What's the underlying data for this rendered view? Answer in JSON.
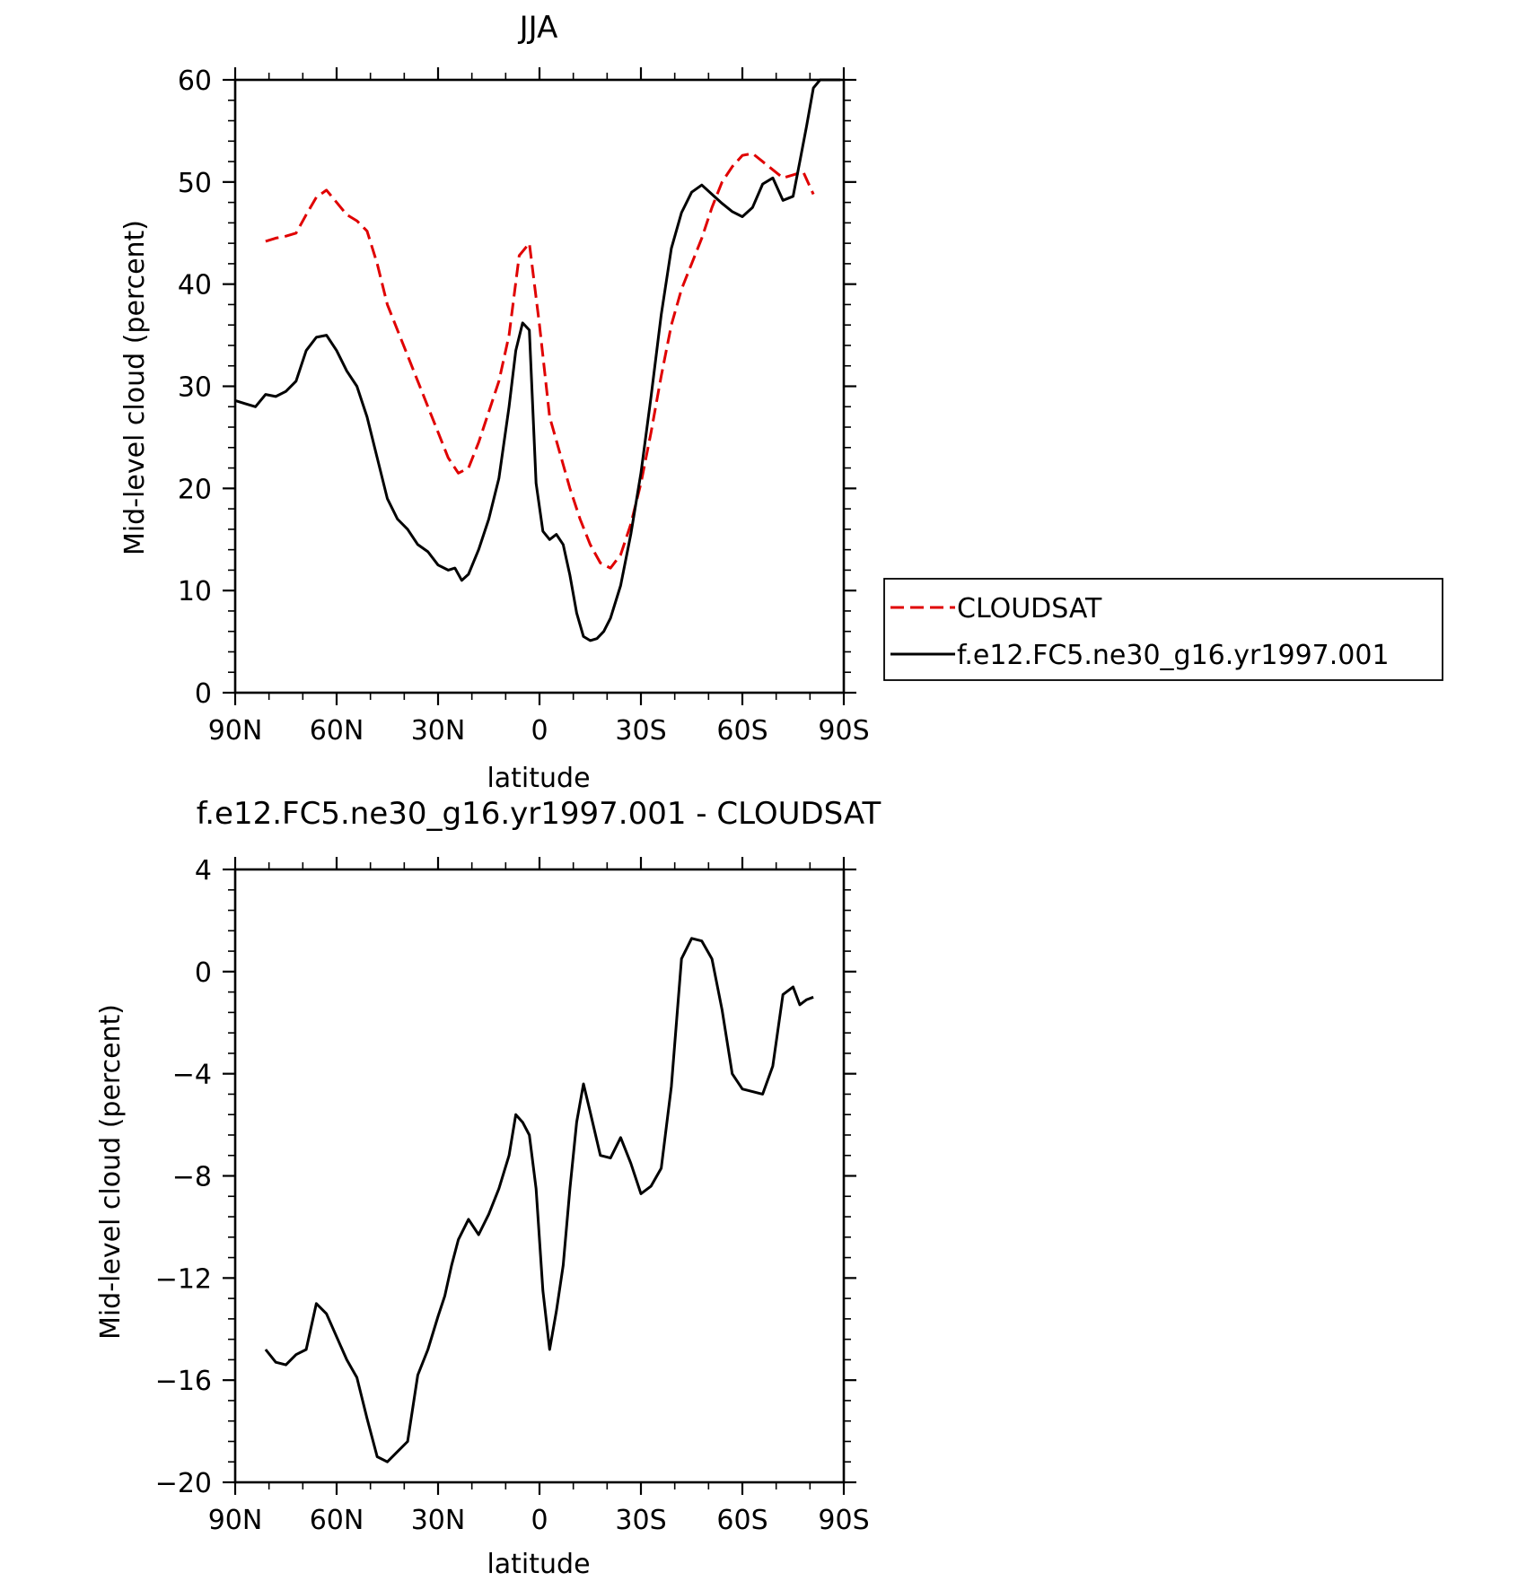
{
  "chart_data": [
    {
      "type": "line",
      "title": "JJA",
      "xlabel": "latitude",
      "ylabel": "Mid-level cloud (percent)",
      "xlim": [
        -90,
        90
      ],
      "ylim": [
        0,
        60
      ],
      "x_ticks": [
        -90,
        -60,
        -30,
        0,
        30,
        60,
        90
      ],
      "x_tick_labels": [
        "90N",
        "60N",
        "30N",
        "0",
        "30S",
        "60S",
        "90S"
      ],
      "y_ticks": [
        0,
        10,
        20,
        30,
        40,
        50,
        60
      ],
      "y_tick_labels": [
        "0",
        "10",
        "20",
        "30",
        "40",
        "50",
        "60"
      ],
      "grid": false,
      "legend_position": "right",
      "series": [
        {
          "name": "CLOUDSAT",
          "color": "#e00000",
          "dash": "dashed",
          "x": [
            -81,
            -78,
            -75,
            -72,
            -69,
            -66,
            -63,
            -60,
            -57,
            -54,
            -51,
            -48,
            -45,
            -42,
            -39,
            -36,
            -33,
            -30,
            -27,
            -24,
            -21,
            -18,
            -15,
            -12,
            -9,
            -6,
            -3,
            0,
            3,
            6,
            9,
            12,
            15,
            18,
            21,
            24,
            27,
            30,
            33,
            36,
            39,
            42,
            45,
            48,
            51,
            54,
            57,
            60,
            63,
            66,
            69,
            72,
            75,
            78,
            81
          ],
          "y": [
            44.2,
            44.5,
            44.7,
            45.0,
            46.8,
            48.5,
            49.2,
            48.0,
            46.8,
            46.2,
            45.2,
            42.0,
            38.0,
            35.5,
            33.0,
            30.5,
            28.0,
            25.5,
            23.0,
            21.5,
            22.0,
            24.5,
            27.5,
            30.5,
            35.0,
            42.8,
            44.0,
            36.0,
            27.0,
            23.5,
            20.0,
            17.0,
            14.5,
            12.7,
            12.2,
            13.5,
            16.5,
            20.5,
            25.5,
            31.0,
            36.0,
            39.5,
            42.0,
            44.5,
            47.5,
            50.0,
            51.5,
            52.6,
            52.8,
            52.0,
            51.2,
            50.4,
            50.7,
            51.0,
            48.8
          ]
        },
        {
          "name": "f.e12.FC5.ne30_g16.yr1997.001",
          "color": "#000000",
          "dash": "solid",
          "x": [
            -90,
            -87,
            -84,
            -81,
            -78,
            -75,
            -72,
            -69,
            -66,
            -63,
            -60,
            -57,
            -54,
            -51,
            -48,
            -45,
            -42,
            -39,
            -36,
            -33,
            -30,
            -27,
            -25,
            -23,
            -21,
            -18,
            -15,
            -12,
            -9,
            -7,
            -5,
            -3,
            -1,
            1,
            3,
            5,
            7,
            9,
            11,
            13,
            15,
            17,
            19,
            21,
            24,
            27,
            30,
            33,
            36,
            39,
            42,
            45,
            48,
            51,
            54,
            57,
            60,
            63,
            66,
            69,
            72,
            75,
            77,
            79,
            81,
            83,
            85,
            87,
            89
          ],
          "y": [
            28.6,
            28.3,
            28.0,
            29.2,
            29.0,
            29.5,
            30.5,
            33.5,
            34.8,
            35.0,
            33.5,
            31.5,
            30.0,
            27.0,
            23.0,
            19.0,
            17.0,
            16.0,
            14.5,
            13.8,
            12.5,
            12.0,
            12.2,
            11.0,
            11.6,
            14.0,
            17.0,
            21.0,
            28.0,
            33.5,
            36.2,
            35.5,
            20.5,
            15.8,
            15.0,
            15.5,
            14.5,
            11.5,
            7.8,
            5.5,
            5.1,
            5.3,
            6.0,
            7.3,
            10.5,
            15.5,
            21.5,
            29.0,
            37.0,
            43.5,
            47.0,
            49.0,
            49.7,
            48.8,
            47.9,
            47.1,
            46.6,
            47.5,
            49.8,
            50.4,
            48.2,
            48.6,
            52.0,
            55.5,
            59.2,
            60.0,
            60.0,
            60.0,
            60.0
          ]
        }
      ]
    },
    {
      "type": "line",
      "title": "f.e12.FC5.ne30_g16.yr1997.001 - CLOUDSAT",
      "xlabel": "latitude",
      "ylabel": "Mid-level cloud (percent)",
      "xlim": [
        -90,
        90
      ],
      "ylim": [
        -20,
        4
      ],
      "x_ticks": [
        -90,
        -60,
        -30,
        0,
        30,
        60,
        90
      ],
      "x_tick_labels": [
        "90N",
        "60N",
        "30N",
        "0",
        "30S",
        "60S",
        "90S"
      ],
      "y_ticks": [
        -20,
        -16,
        -12,
        -8,
        -4,
        0,
        4
      ],
      "y_tick_labels": [
        "−20",
        "−16",
        "−12",
        "−8",
        "−4",
        "0",
        "4"
      ],
      "grid": false,
      "series": [
        {
          "color": "#000000",
          "dash": "solid",
          "x": [
            -81,
            -78,
            -75,
            -72,
            -69,
            -66,
            -63,
            -60,
            -57,
            -54,
            -51,
            -48,
            -45,
            -42,
            -39,
            -36,
            -33,
            -30,
            -28,
            -26,
            -24,
            -21,
            -18,
            -15,
            -12,
            -9,
            -7,
            -5,
            -3,
            -1,
            1,
            3,
            5,
            7,
            9,
            11,
            13,
            15,
            18,
            21,
            24,
            27,
            30,
            33,
            36,
            39,
            42,
            45,
            48,
            51,
            54,
            57,
            60,
            63,
            66,
            69,
            72,
            75,
            77,
            79,
            81
          ],
          "y": [
            -14.8,
            -15.3,
            -15.4,
            -15.0,
            -14.8,
            -13.0,
            -13.4,
            -14.3,
            -15.2,
            -15.9,
            -17.5,
            -19.0,
            -19.2,
            -18.8,
            -18.4,
            -15.8,
            -14.8,
            -13.5,
            -12.7,
            -11.5,
            -10.5,
            -9.7,
            -10.3,
            -9.5,
            -8.5,
            -7.2,
            -5.6,
            -5.9,
            -6.4,
            -8.5,
            -12.5,
            -14.8,
            -13.3,
            -11.5,
            -8.5,
            -5.9,
            -4.4,
            -5.5,
            -7.2,
            -7.3,
            -6.5,
            -7.5,
            -8.7,
            -8.4,
            -7.7,
            -4.5,
            0.5,
            1.3,
            1.2,
            0.5,
            -1.5,
            -4.0,
            -4.6,
            -4.7,
            -4.8,
            -3.7,
            -0.9,
            -0.6,
            -1.3,
            -1.1,
            -1.0
          ]
        }
      ]
    }
  ],
  "legend": {
    "entries": [
      "CLOUDSAT",
      "f.e12.FC5.ne30_g16.yr1997.001"
    ]
  }
}
